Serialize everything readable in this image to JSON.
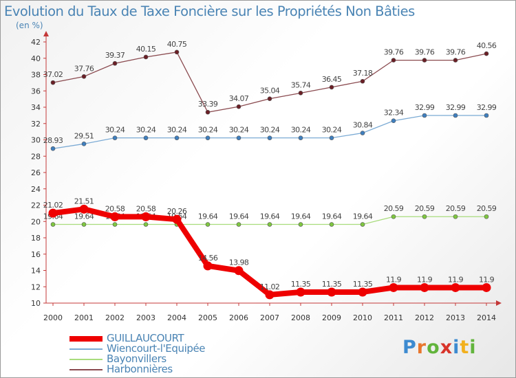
{
  "title": "Evolution du Taux de Taxe Foncière sur les Propriétés Non Bâties",
  "unit_label": "(en %)",
  "brand": {
    "letters": [
      "P",
      "r",
      "o",
      "x",
      "i",
      "t",
      "i"
    ],
    "colors": [
      "#3c8ad0",
      "#e8762d",
      "#62b43c",
      "#d8342a",
      "#3c8ad0",
      "#f2b01e",
      "#62b43c"
    ]
  },
  "chart_data": {
    "type": "line",
    "x": [
      "2000",
      "2001",
      "2002",
      "2003",
      "2004",
      "2005",
      "2006",
      "2007",
      "2008",
      "2009",
      "2010",
      "2011",
      "2012",
      "2013",
      "2014"
    ],
    "ylim": [
      10,
      42
    ],
    "yticks": [
      "10",
      "12",
      "14",
      "16",
      "18",
      "20",
      "22",
      "24",
      "26",
      "28",
      "30",
      "32",
      "34",
      "36",
      "38",
      "40",
      "42"
    ],
    "grid": false,
    "legend_position": "bottom-left",
    "series": [
      {
        "name": "Harbonnières",
        "color": "#6b1f26",
        "line_color": "#8a4a4f",
        "width": 1.3,
        "values": [
          37.02,
          37.76,
          39.37,
          40.15,
          40.75,
          33.39,
          34.07,
          35.04,
          35.74,
          36.45,
          37.18,
          39.76,
          39.76,
          39.76,
          40.56
        ],
        "labels": [
          "37.02",
          "37.76",
          "39.37",
          "40.15",
          "40.75",
          "33.39",
          "34.07",
          "35.04",
          "35.74",
          "36.45",
          "37.18",
          "39.76",
          "39.76",
          "39.76",
          "40.56"
        ]
      },
      {
        "name": "Wiencourt-l'Equipée",
        "color": "#3f7fbf",
        "line_color": "#7aaad4",
        "width": 1.3,
        "values": [
          28.93,
          29.51,
          30.24,
          30.24,
          30.24,
          30.24,
          30.24,
          30.24,
          30.24,
          30.24,
          30.84,
          32.34,
          32.99,
          32.99,
          32.99
        ],
        "labels": [
          "28.93",
          "29.51",
          "30.24",
          "30.24",
          "30.24",
          "30.24",
          "30.24",
          "30.24",
          "30.24",
          "30.24",
          "30.84",
          "32.34",
          "32.99",
          "32.99",
          "32.99"
        ]
      },
      {
        "name": "Bayonvillers",
        "color": "#7fc740",
        "line_color": "#a8dc7c",
        "width": 1.3,
        "values": [
          19.64,
          19.64,
          19.64,
          19.64,
          19.64,
          19.64,
          19.64,
          19.64,
          19.64,
          19.64,
          19.64,
          20.59,
          20.59,
          20.59,
          20.59
        ],
        "labels": [
          "19.64",
          "19.64",
          "19.64",
          "19.64",
          "19.64",
          "19.64",
          "19.64",
          "19.64",
          "19.64",
          "19.64",
          "19.64",
          "20.59",
          "20.59",
          "20.59",
          "20.59"
        ]
      },
      {
        "name": "GUILLAUCOURT",
        "color": "#ee0000",
        "line_color": "#ee0000",
        "width": 8,
        "values": [
          21.02,
          21.51,
          20.58,
          20.58,
          20.26,
          14.56,
          13.98,
          11.02,
          11.35,
          11.35,
          11.35,
          11.9,
          11.9,
          11.9,
          11.9
        ],
        "labels": [
          "21.02",
          "21.51",
          "20.58",
          "20.58",
          "20.26",
          "14.56",
          "13.98",
          "11.02",
          "11.35",
          "11.35",
          "11.35",
          "11.9",
          "11.9",
          "11.9",
          "11.9"
        ]
      }
    ],
    "legend_order": [
      3,
      1,
      2,
      0
    ]
  }
}
